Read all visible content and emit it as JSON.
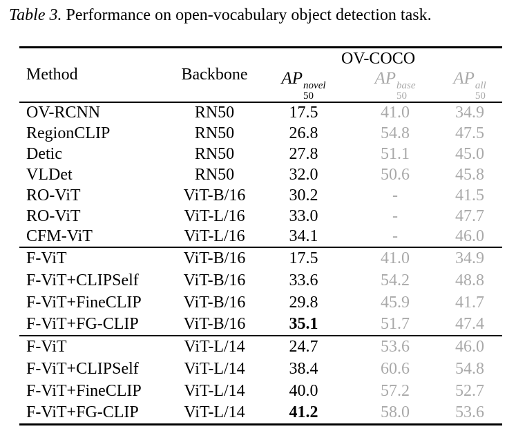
{
  "caption": {
    "prefix": "Table 3.",
    "text": " Performance on open-vocabulary object detection task."
  },
  "colors": {
    "text": "#000000",
    "muted": "#a9a9a9"
  },
  "table": {
    "headers": {
      "method": "Method",
      "backbone": "Backbone",
      "group": "OV-COCO"
    },
    "ap_headers": [
      {
        "base": "AP",
        "sup": "novel",
        "sub": "50"
      },
      {
        "base": "AP",
        "sup": "base",
        "sub": "50"
      },
      {
        "base": "AP",
        "sup": "all",
        "sub": "50"
      }
    ],
    "sections": [
      {
        "rows": [
          {
            "method": "OV-RCNN",
            "backbone": "RN50",
            "novel": "17.5",
            "base": "41.0",
            "all": "34.9"
          },
          {
            "method": "RegionCLIP",
            "backbone": "RN50",
            "novel": "26.8",
            "base": "54.8",
            "all": "47.5"
          },
          {
            "method": "Detic",
            "backbone": "RN50",
            "novel": "27.8",
            "base": "51.1",
            "all": "45.0"
          },
          {
            "method": "VLDet",
            "backbone": "RN50",
            "novel": "32.0",
            "base": "50.6",
            "all": "45.8"
          },
          {
            "method": "RO-ViT",
            "backbone": "ViT-B/16",
            "novel": "30.2",
            "base": "-",
            "all": "41.5"
          },
          {
            "method": "RO-ViT",
            "backbone": "ViT-L/16",
            "novel": "33.0",
            "base": "-",
            "all": "47.7"
          },
          {
            "method": "CFM-ViT",
            "backbone": "ViT-L/16",
            "novel": "34.1",
            "base": "-",
            "all": "46.0"
          }
        ]
      },
      {
        "rows": [
          {
            "method": "F-ViT",
            "backbone": "ViT-B/16",
            "novel": "17.5",
            "base": "41.0",
            "all": "34.9"
          },
          {
            "method": "F-ViT+CLIPSelf",
            "backbone": "ViT-B/16",
            "novel": "33.6",
            "base": "54.2",
            "all": "48.8"
          },
          {
            "method": "F-ViT+FineCLIP",
            "backbone": "ViT-B/16",
            "novel": "29.8",
            "base": "45.9",
            "all": "41.7"
          },
          {
            "method": "F-ViT+FG-CLIP",
            "backbone": "ViT-B/16",
            "novel": "35.1",
            "base": "51.7",
            "all": "47.4"
          }
        ]
      },
      {
        "rows": [
          {
            "method": "F-ViT",
            "backbone": "ViT-L/14",
            "novel": "24.7",
            "base": "53.6",
            "all": "46.0"
          },
          {
            "method": "F-ViT+CLIPSelf",
            "backbone": "ViT-L/14",
            "novel": "38.4",
            "base": "60.6",
            "all": "54.8"
          },
          {
            "method": "F-ViT+FineCLIP",
            "backbone": "ViT-L/14",
            "novel": "40.0",
            "base": "57.2",
            "all": "52.7"
          },
          {
            "method": "F-ViT+FG-CLIP",
            "backbone": "ViT-L/14",
            "novel": "41.2",
            "base": "58.0",
            "all": "53.6"
          }
        ]
      }
    ]
  }
}
